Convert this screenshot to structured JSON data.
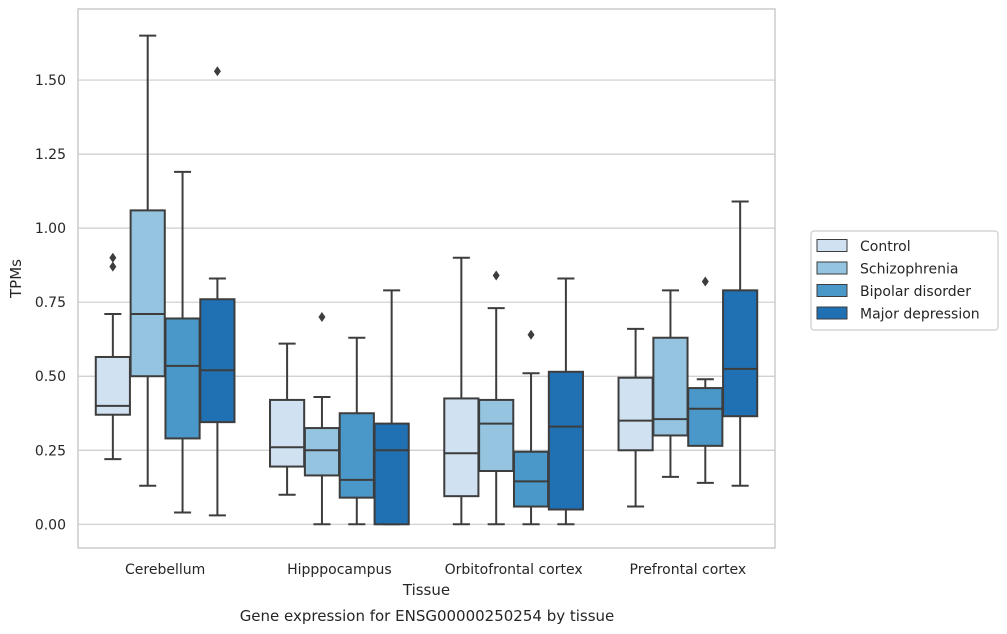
{
  "chart_data": {
    "type": "boxplot",
    "title": "",
    "caption": "Gene expression for ENSG00000250254 by tissue",
    "xlabel": "Tissue",
    "ylabel": "TPMs",
    "ylim": [
      -0.08,
      1.74
    ],
    "yticks": [
      "0.00",
      "0.25",
      "0.50",
      "0.75",
      "1.00",
      "1.25",
      "1.50"
    ],
    "ytick_values": [
      0,
      0.25,
      0.5,
      0.75,
      1.0,
      1.25,
      1.5
    ],
    "grid": "horizontal",
    "legend_position": "right",
    "categories": [
      "Cerebellum",
      "Hipppocampus",
      "Orbitofrontal cortex",
      "Prefrontal cortex"
    ],
    "series": [
      {
        "name": "Control",
        "color": "#d0e1f2",
        "boxes": [
          {
            "whisker_low": 0.22,
            "q1": 0.37,
            "median": 0.4,
            "q3": 0.565,
            "whisker_high": 0.71,
            "outliers": [
              0.87,
              0.9
            ]
          },
          {
            "whisker_low": 0.1,
            "q1": 0.195,
            "median": 0.26,
            "q3": 0.42,
            "whisker_high": 0.61,
            "outliers": []
          },
          {
            "whisker_low": 0.0,
            "q1": 0.095,
            "median": 0.24,
            "q3": 0.425,
            "whisker_high": 0.9,
            "outliers": []
          },
          {
            "whisker_low": 0.06,
            "q1": 0.25,
            "median": 0.35,
            "q3": 0.495,
            "whisker_high": 0.66,
            "outliers": []
          }
        ]
      },
      {
        "name": "Schizophrenia",
        "color": "#94c4df",
        "boxes": [
          {
            "whisker_low": 0.13,
            "q1": 0.5,
            "median": 0.71,
            "q3": 1.06,
            "whisker_high": 1.65,
            "outliers": []
          },
          {
            "whisker_low": 0.0,
            "q1": 0.165,
            "median": 0.25,
            "q3": 0.325,
            "whisker_high": 0.43,
            "outliers": [
              0.7
            ]
          },
          {
            "whisker_low": 0.0,
            "q1": 0.18,
            "median": 0.34,
            "q3": 0.42,
            "whisker_high": 0.73,
            "outliers": [
              0.84
            ]
          },
          {
            "whisker_low": 0.16,
            "q1": 0.3,
            "median": 0.355,
            "q3": 0.63,
            "whisker_high": 0.79,
            "outliers": []
          }
        ]
      },
      {
        "name": "Bipolar disorder",
        "color": "#4a98c9",
        "boxes": [
          {
            "whisker_low": 0.04,
            "q1": 0.29,
            "median": 0.535,
            "q3": 0.695,
            "whisker_high": 1.19,
            "outliers": []
          },
          {
            "whisker_low": 0.0,
            "q1": 0.09,
            "median": 0.15,
            "q3": 0.375,
            "whisker_high": 0.63,
            "outliers": []
          },
          {
            "whisker_low": 0.0,
            "q1": 0.06,
            "median": 0.145,
            "q3": 0.245,
            "whisker_high": 0.51,
            "outliers": [
              0.64
            ]
          },
          {
            "whisker_low": 0.14,
            "q1": 0.265,
            "median": 0.39,
            "q3": 0.46,
            "whisker_high": 0.49,
            "outliers": [
              0.82
            ]
          }
        ]
      },
      {
        "name": "Major depression",
        "color": "#2070b4",
        "boxes": [
          {
            "whisker_low": 0.03,
            "q1": 0.345,
            "median": 0.52,
            "q3": 0.76,
            "whisker_high": 0.83,
            "outliers": [
              1.53
            ]
          },
          {
            "whisker_low": 0.0,
            "q1": 0.0,
            "median": 0.25,
            "q3": 0.34,
            "whisker_high": 0.79,
            "outliers": []
          },
          {
            "whisker_low": 0.0,
            "q1": 0.05,
            "median": 0.33,
            "q3": 0.515,
            "whisker_high": 0.83,
            "outliers": []
          },
          {
            "whisker_low": 0.13,
            "q1": 0.365,
            "median": 0.525,
            "q3": 0.79,
            "whisker_high": 1.09,
            "outliers": []
          }
        ]
      }
    ],
    "colors": {
      "grid": "#cccccc",
      "frame": "#cccccc",
      "edge": "#3d3d3d",
      "text": "#262626"
    }
  }
}
